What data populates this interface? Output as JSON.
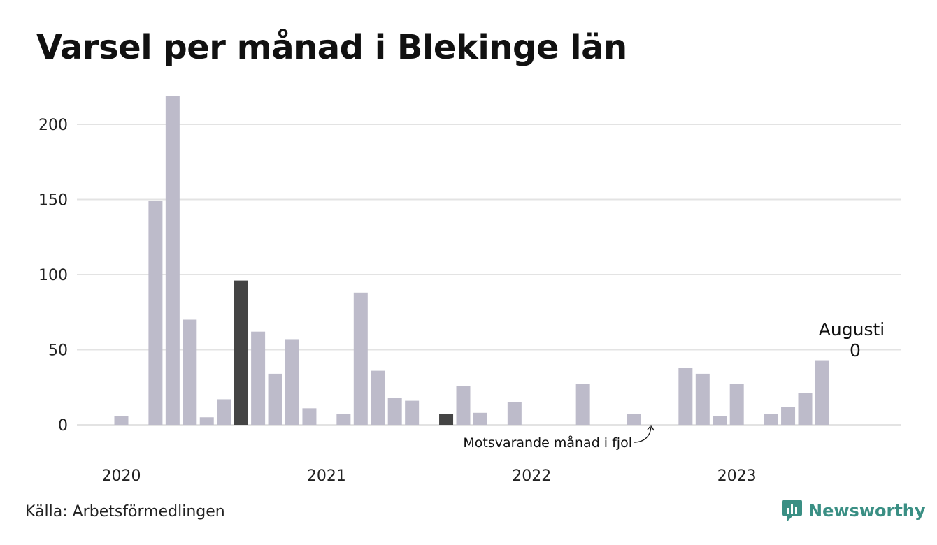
{
  "title": "Varsel per månad i Blekinge län",
  "source": "Källa: Arbetsförmedlingen",
  "brand": "Newsworthy",
  "colors": {
    "bar": "#bdbbca",
    "highlight": "#444444",
    "grid": "#e3e3e3",
    "brand": "#3a8f84"
  },
  "annotation": {
    "text": "Motsvarande månad i fjol",
    "target": "2022-08"
  },
  "latest_label": {
    "month": "Augusti",
    "value": "0"
  },
  "chart_data": {
    "type": "bar",
    "title": "Varsel per månad i Blekinge län",
    "xlabel": "",
    "ylabel": "",
    "ylim": [
      0,
      220
    ],
    "yticks": [
      0,
      50,
      100,
      150,
      200
    ],
    "x_tick_labels": [
      "2020",
      "2021",
      "2022",
      "2023"
    ],
    "grid": true,
    "x": [
      "2020-01",
      "2020-02",
      "2020-03",
      "2020-04",
      "2020-05",
      "2020-06",
      "2020-07",
      "2020-08",
      "2020-09",
      "2020-10",
      "2020-11",
      "2020-12",
      "2021-01",
      "2021-02",
      "2021-03",
      "2021-04",
      "2021-05",
      "2021-06",
      "2021-07",
      "2021-08",
      "2021-09",
      "2021-10",
      "2021-11",
      "2021-12",
      "2022-01",
      "2022-02",
      "2022-03",
      "2022-04",
      "2022-05",
      "2022-06",
      "2022-07",
      "2022-08",
      "2022-09",
      "2022-10",
      "2022-11",
      "2022-12",
      "2023-01",
      "2023-02",
      "2023-03",
      "2023-04",
      "2023-05",
      "2023-06",
      "2023-07",
      "2023-08"
    ],
    "values": [
      6,
      0,
      149,
      219,
      70,
      5,
      17,
      96,
      62,
      34,
      57,
      11,
      0,
      7,
      88,
      36,
      18,
      16,
      0,
      7,
      26,
      8,
      0,
      15,
      0,
      0,
      0,
      27,
      0,
      0,
      7,
      0,
      0,
      38,
      34,
      6,
      27,
      0,
      7,
      12,
      21,
      43,
      0,
      0
    ],
    "highlight": [
      "2020-08",
      "2021-08"
    ]
  }
}
